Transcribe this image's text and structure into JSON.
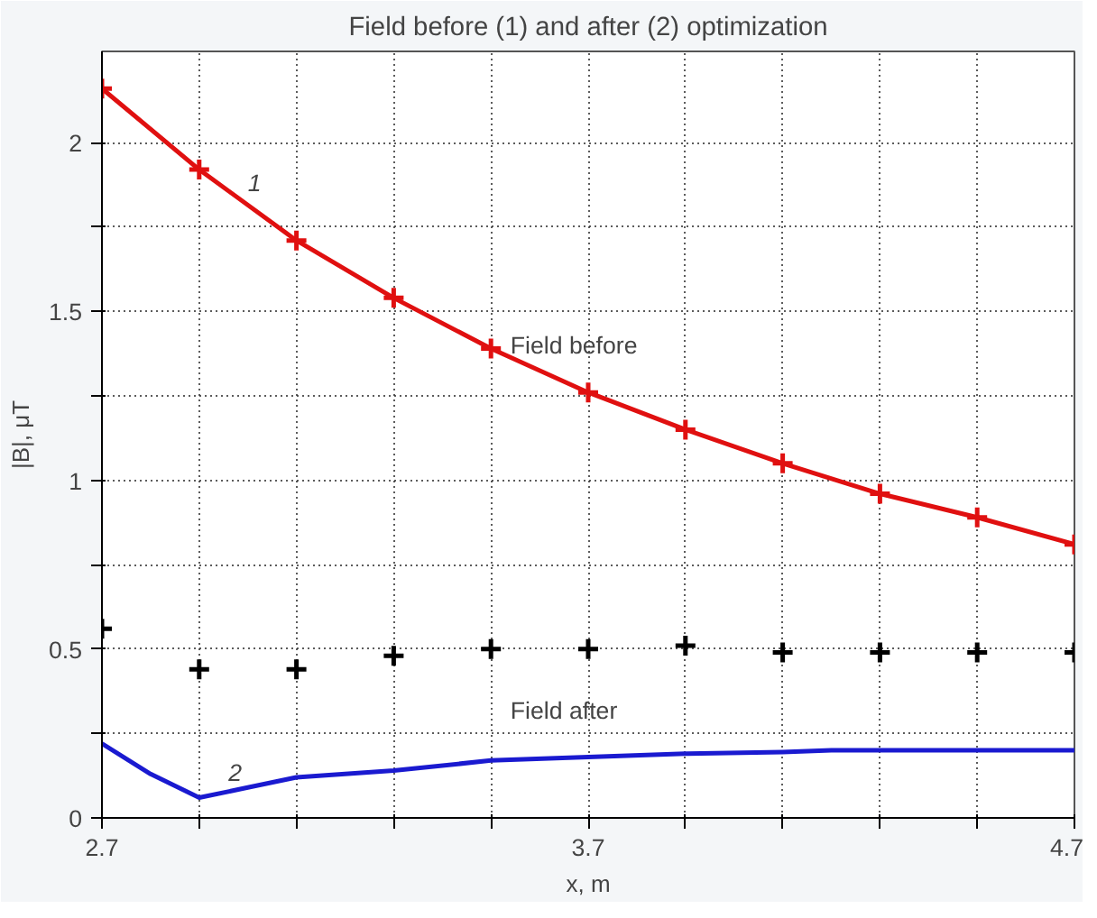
{
  "chart_data": {
    "type": "line",
    "title": "Field before (1) and after (2) optimization",
    "xlabel": "x, m",
    "ylabel": "|B|, μT",
    "xlim": [
      2.7,
      4.7
    ],
    "ylim": [
      0,
      2.27
    ],
    "xticks": [
      2.7,
      {
        "value": 2.9,
        "label": null
      },
      {
        "value": 3.1,
        "label": null
      },
      {
        "value": 3.3,
        "label": null
      },
      {
        "value": 3.5,
        "label": null
      },
      3.7,
      {
        "value": 3.9,
        "label": null
      },
      {
        "value": 4.1,
        "label": null
      },
      {
        "value": 4.3,
        "label": null
      },
      {
        "value": 4.5,
        "label": null
      },
      4.7
    ],
    "yticks": [
      0,
      {
        "value": 0.25,
        "label": null
      },
      0.5,
      {
        "value": 0.75,
        "label": null
      },
      1,
      {
        "value": 1.25,
        "label": null
      },
      1.5,
      {
        "value": 1.75,
        "label": null
      },
      2
    ],
    "grid": true,
    "line_style": "solid",
    "series": [
      {
        "marker": "cross",
        "color": "#e01010",
        "x": [
          2.7,
          2.9,
          3.1,
          3.3,
          3.5,
          3.7,
          3.9,
          4.1,
          4.3,
          4.5,
          4.7
        ],
        "values": [
          2.16,
          1.92,
          1.71,
          1.54,
          1.39,
          1.26,
          1.15,
          1.05,
          0.96,
          0.89,
          0.81
        ]
      },
      {
        "type": "scatter",
        "marker": "cross",
        "color": "#000000",
        "x": [
          2.7,
          2.9,
          3.1,
          3.3,
          3.5,
          3.7,
          3.9,
          4.1,
          4.3,
          4.5,
          4.7
        ],
        "values": [
          0.56,
          0.44,
          0.44,
          0.48,
          0.5,
          0.5,
          0.51,
          0.49,
          0.49,
          0.49,
          0.49
        ]
      },
      {
        "marker": "none",
        "color": "#1a1ad0",
        "x": [
          2.7,
          2.8,
          2.9,
          3.0,
          3.1,
          3.3,
          3.5,
          3.7,
          3.9,
          4.1,
          4.2,
          4.7
        ],
        "values": [
          0.22,
          0.13,
          0.06,
          0.09,
          0.12,
          0.14,
          0.17,
          0.18,
          0.19,
          0.195,
          0.2,
          0.2
        ]
      }
    ],
    "annotations": [
      "1",
      "2",
      {
        "text": "Field before",
        "x": 3.54,
        "y": 1.4
      },
      "Field after"
    ]
  }
}
